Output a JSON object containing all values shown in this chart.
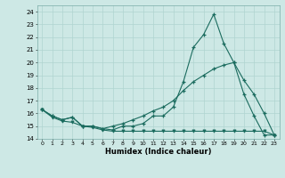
{
  "xlabel": "Humidex (Indice chaleur)",
  "bg_color": "#cde8e5",
  "grid_color": "#b0d4d0",
  "line_color": "#1a6b5e",
  "xlim": [
    -0.5,
    23.5
  ],
  "ylim": [
    14,
    24.5
  ],
  "yticks": [
    14,
    15,
    16,
    17,
    18,
    19,
    20,
    21,
    22,
    23,
    24
  ],
  "xticks": [
    0,
    1,
    2,
    3,
    4,
    5,
    6,
    7,
    8,
    9,
    10,
    11,
    12,
    13,
    14,
    15,
    16,
    17,
    18,
    19,
    20,
    21,
    22,
    23
  ],
  "line1_x": [
    0,
    1,
    2,
    3,
    4,
    5,
    6,
    7,
    8,
    9,
    10,
    11,
    12,
    13,
    14,
    15,
    16,
    17,
    18,
    19,
    20,
    21,
    22,
    23
  ],
  "line1_y": [
    16.3,
    15.8,
    15.5,
    15.7,
    15.0,
    15.0,
    14.8,
    14.7,
    15.0,
    15.0,
    15.2,
    15.8,
    15.8,
    16.5,
    18.5,
    21.2,
    22.2,
    23.8,
    21.5,
    20.0,
    17.5,
    15.8,
    14.3,
    14.3
  ],
  "line2_x": [
    0,
    1,
    2,
    3,
    4,
    5,
    6,
    7,
    8,
    9,
    10,
    11,
    12,
    13,
    14,
    15,
    16,
    17,
    18,
    19,
    20,
    21,
    22,
    23
  ],
  "line2_y": [
    16.3,
    15.8,
    15.5,
    15.7,
    15.0,
    15.0,
    14.8,
    15.0,
    15.2,
    15.5,
    15.8,
    16.2,
    16.5,
    17.0,
    17.8,
    18.5,
    19.0,
    19.5,
    19.8,
    20.0,
    18.6,
    17.5,
    16.0,
    14.3
  ],
  "line3_x": [
    0,
    1,
    2,
    3,
    4,
    5,
    6,
    7,
    8,
    9,
    10,
    11,
    12,
    13,
    14,
    15,
    16,
    17,
    18,
    19,
    20,
    21,
    22,
    23
  ],
  "line3_y": [
    16.3,
    15.7,
    15.4,
    15.3,
    15.0,
    14.9,
    14.7,
    14.6,
    14.6,
    14.6,
    14.6,
    14.6,
    14.6,
    14.6,
    14.6,
    14.6,
    14.6,
    14.6,
    14.6,
    14.6,
    14.6,
    14.6,
    14.6,
    14.3
  ]
}
